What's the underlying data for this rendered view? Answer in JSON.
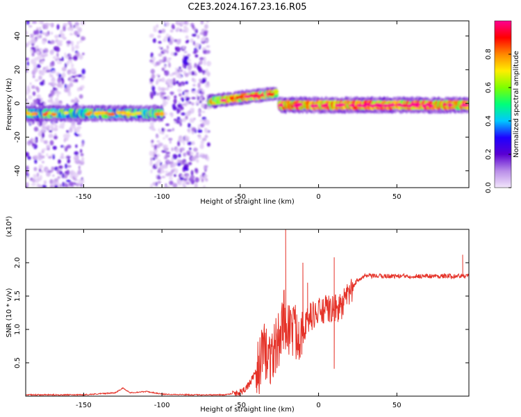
{
  "title": "C2E3.2024.167.23.16.R05",
  "chart_data": [
    {
      "type": "heatmap",
      "xlabel": "Height of straight line (km)",
      "ylabel": "Frequency (Hz)",
      "xlim": [
        -187,
        96
      ],
      "ylim": [
        -50,
        49
      ],
      "xticks": [
        -150,
        -100,
        -50,
        0,
        50
      ],
      "yticks": [
        40,
        20,
        0,
        -20,
        -40
      ],
      "colorbar": {
        "label": "Normalized spectral amplitude",
        "range": [
          0,
          1
        ],
        "ticks": [
          0.0,
          0.2,
          0.4,
          0.6,
          0.8
        ],
        "colormap": [
          "#f2e6fb",
          "#b98de8",
          "#5a00d2",
          "#1f00ff",
          "#00c8ff",
          "#00ff7a",
          "#7dff00",
          "#ffee00",
          "#ff8800",
          "#ff0000",
          "#ff0090"
        ]
      },
      "features": [
        {
          "name": "scatter-left",
          "x_range": [
            -187,
            -150
          ],
          "freq_range": [
            -50,
            49
          ],
          "level": 0.12
        },
        {
          "name": "scatter-mid",
          "x_range": [
            -107,
            -70
          ],
          "freq_range": [
            -50,
            49
          ],
          "level": 0.15
        },
        {
          "name": "trace-left",
          "x_start": -187,
          "x_end": -100,
          "freq_center": -6,
          "freq_width": 6,
          "level": 0.45
        },
        {
          "name": "trace-mid",
          "x_start": -70,
          "x_end": -27,
          "freq_start": 1,
          "freq_end": 6,
          "freq_width": 5,
          "level": 0.65
        },
        {
          "name": "trace-right",
          "x_start": -25,
          "x_end": 96,
          "freq_center": -1,
          "freq_width": 6,
          "level": 0.75
        }
      ]
    },
    {
      "type": "line",
      "xlabel": "Height of straight line (km)",
      "ylabel": "SNR (10 * v/v)",
      "yscale_label": "(x10⁴)",
      "xlim": [
        -187,
        96
      ],
      "ylim": [
        0,
        2.5
      ],
      "xticks": [
        -150,
        -100,
        -50,
        0,
        50
      ],
      "yticks": [
        0.5,
        1.0,
        1.5,
        2.0
      ],
      "color": "#e53228",
      "series": [
        {
          "x": [
            -187,
            -150,
            -130,
            -125,
            -120,
            -110,
            -100,
            -80,
            -60,
            -50,
            -45,
            -40,
            -35,
            -30,
            -25,
            -22,
            -20,
            -18,
            -15,
            -10,
            -5,
            0,
            5,
            10,
            15,
            20,
            25,
            30,
            40,
            50,
            60,
            70,
            80,
            90,
            96
          ],
          "y": [
            0.02,
            0.02,
            0.05,
            0.12,
            0.05,
            0.07,
            0.03,
            0.02,
            0.02,
            0.06,
            0.15,
            0.35,
            0.65,
            0.6,
            0.85,
            1.2,
            1.0,
            1.05,
            0.95,
            1.0,
            1.2,
            1.25,
            1.3,
            1.3,
            1.35,
            1.55,
            1.75,
            1.8,
            1.8,
            1.8,
            1.8,
            1.8,
            1.8,
            1.8,
            1.8
          ]
        }
      ],
      "peaks": [
        {
          "x": -34,
          "y": 0.95
        },
        {
          "x": -21,
          "y": 2.5
        },
        {
          "x": -10,
          "y": 2.0
        },
        {
          "x": -7,
          "y": 1.7
        },
        {
          "x": 10,
          "y": 2.08
        },
        {
          "x": 10,
          "y": 0.41
        },
        {
          "x": 92,
          "y": 2.12
        }
      ]
    }
  ]
}
